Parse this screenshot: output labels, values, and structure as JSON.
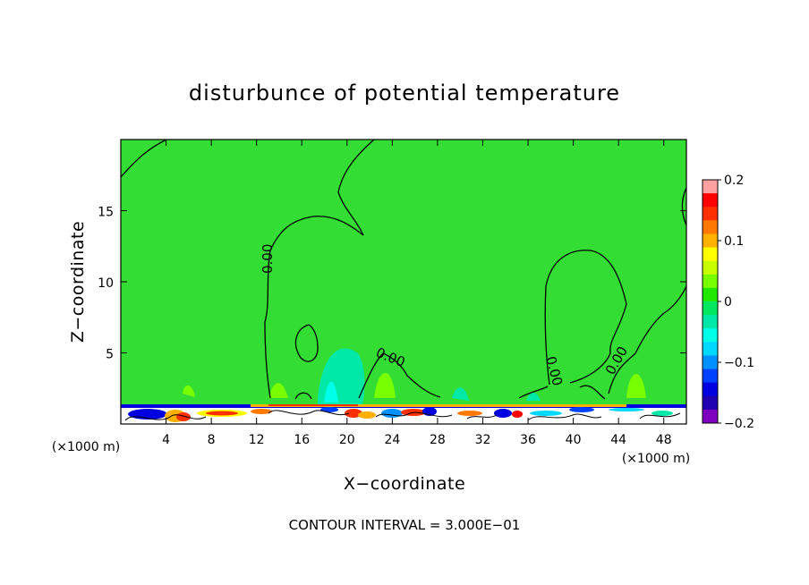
{
  "chart_data": {
    "type": "heatmap",
    "title": "disturbunce of potential temperature",
    "xlabel": "X−coordinate",
    "ylabel": "Z−coordinate",
    "x_unit": "(×1000 m)",
    "y_unit": "(×1000 m)",
    "xlim": [
      0,
      50
    ],
    "ylim": [
      0,
      20
    ],
    "xticks": [
      4,
      8,
      12,
      16,
      20,
      24,
      28,
      32,
      36,
      40,
      44,
      48
    ],
    "xtick_labels": [
      "4",
      "8",
      "12",
      "16",
      "20",
      "24",
      "28",
      "32",
      "36",
      "40",
      "44",
      "48"
    ],
    "yticks": [
      5,
      10,
      15
    ],
    "ytick_labels": [
      "5",
      "10",
      "15"
    ],
    "colorbar": {
      "min": -0.2,
      "max": 0.2,
      "ticks": [
        0.2,
        0.1,
        0,
        -0.1,
        -0.2
      ],
      "tick_labels": [
        "0.2",
        "0.1",
        "0",
        "−0.1",
        "−0.2"
      ],
      "colors": [
        "#ffa0a0",
        "#ff0000",
        "#ff3000",
        "#ff7800",
        "#ffb000",
        "#ffff00",
        "#c8ff00",
        "#78ff00",
        "#20e800",
        "#00e860",
        "#00e8a8",
        "#00ffe8",
        "#00d8ff",
        "#0090ff",
        "#0040ff",
        "#0000e0",
        "#2000b0",
        "#8000c0"
      ]
    },
    "contour_labels": [
      "0.00",
      "0.00",
      "0.00",
      "0.00"
    ],
    "footer": "CONTOUR INTERVAL = 3.000E−01",
    "background_color": "#33dd33"
  }
}
